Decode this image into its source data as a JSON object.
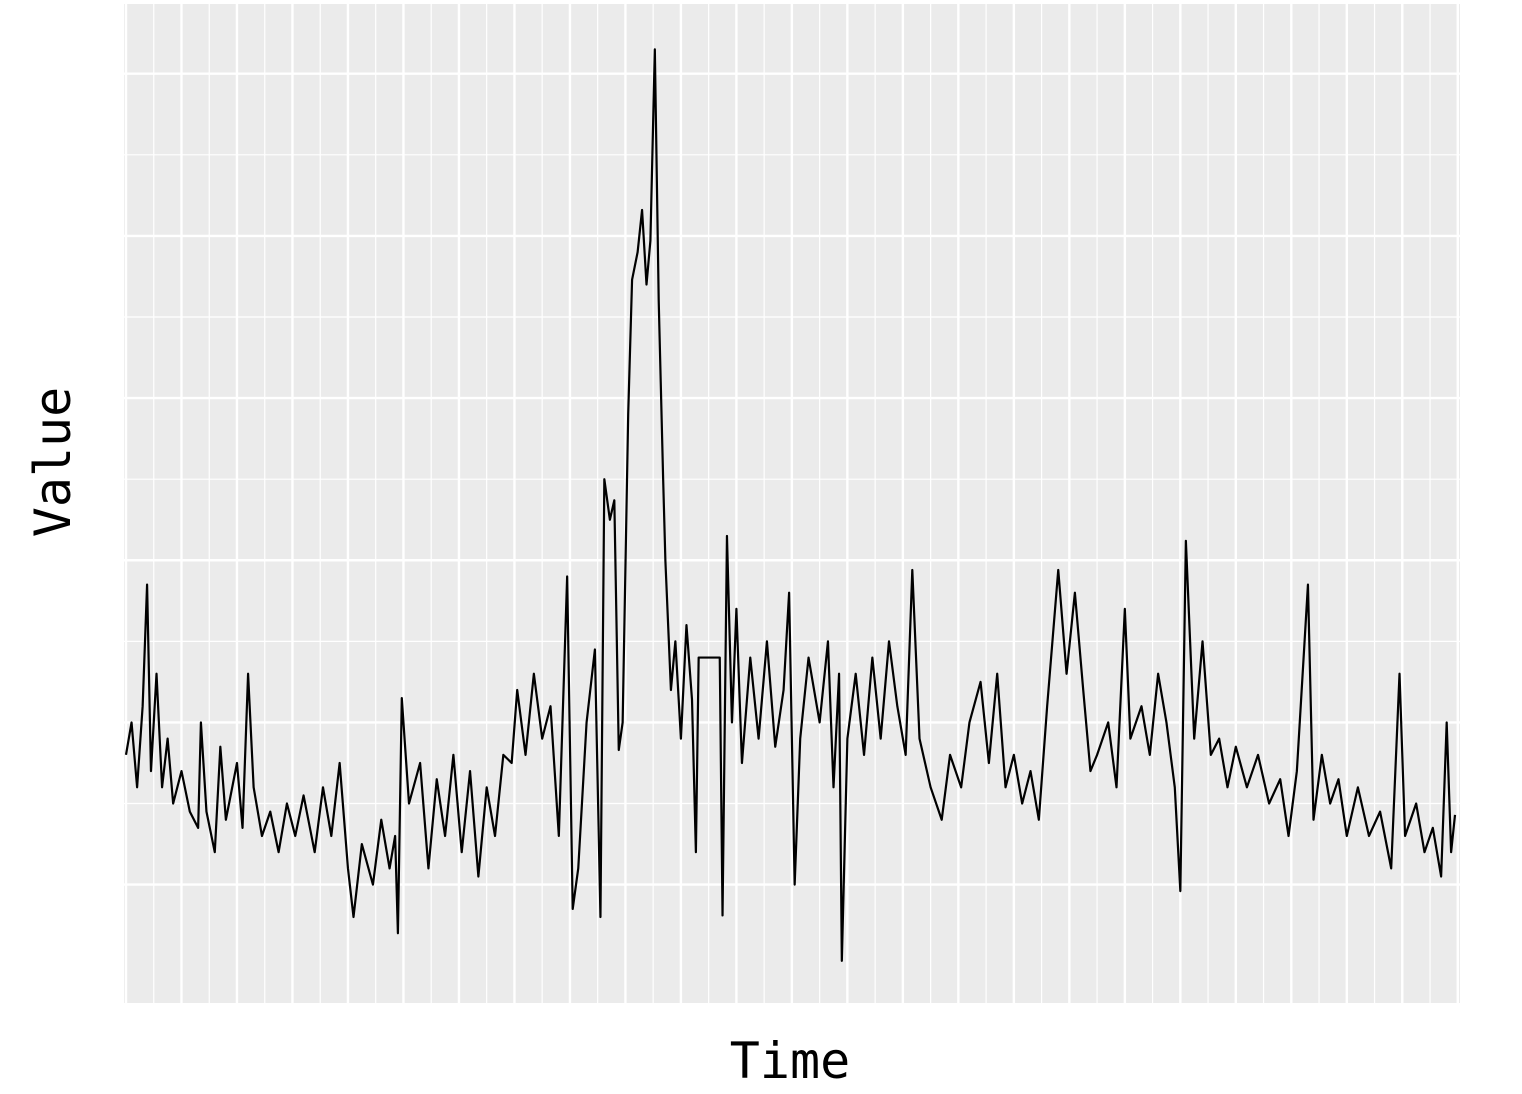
{
  "chart_data": {
    "type": "line",
    "x_label": "Time",
    "y_label": "Value",
    "x": [
      0,
      0.1,
      0.2,
      0.3,
      0.38,
      0.45,
      0.55,
      0.65,
      0.75,
      0.85,
      1.0,
      1.15,
      1.3,
      1.35,
      1.45,
      1.6,
      1.7,
      1.8,
      2.0,
      2.1,
      2.2,
      2.3,
      2.45,
      2.6,
      2.75,
      2.9,
      3.05,
      3.2,
      3.4,
      3.55,
      3.7,
      3.85,
      4.0,
      4.1,
      4.25,
      4.45,
      4.6,
      4.75,
      4.85,
      4.9,
      4.97,
      5.1,
      5.3,
      5.45,
      5.6,
      5.75,
      5.9,
      6.05,
      6.2,
      6.35,
      6.5,
      6.65,
      6.8,
      6.95,
      7.05,
      7.2,
      7.35,
      7.5,
      7.65,
      7.8,
      7.95,
      8.05,
      8.15,
      8.3,
      8.45,
      8.55,
      8.62,
      8.72,
      8.8,
      8.88,
      8.95,
      9.05,
      9.12,
      9.22,
      9.3,
      9.38,
      9.45,
      9.53,
      9.6,
      9.68,
      9.72,
      9.82,
      9.9,
      10.0,
      10.1,
      10.2,
      10.27,
      10.32,
      10.7,
      10.75,
      10.83,
      10.92,
      11.0,
      11.1,
      11.25,
      11.4,
      11.55,
      11.7,
      11.85,
      11.95,
      12.05,
      12.15,
      12.3,
      12.5,
      12.65,
      12.75,
      12.85,
      12.9,
      13.0,
      13.15,
      13.3,
      13.45,
      13.6,
      13.75,
      13.9,
      14.05,
      14.17,
      14.3,
      14.5,
      14.7,
      14.85,
      15.05,
      15.2,
      15.4,
      15.55,
      15.7,
      15.85,
      16.0,
      16.15,
      16.3,
      16.45,
      16.6,
      16.8,
      16.95,
      17.1,
      17.25,
      17.38,
      17.5,
      17.7,
      17.85,
      18.0,
      18.1,
      18.3,
      18.45,
      18.6,
      18.75,
      18.9,
      19.0,
      19.1,
      19.25,
      19.4,
      19.55,
      19.7,
      19.85,
      20.0,
      20.2,
      20.4,
      20.6,
      20.8,
      20.95,
      21.1,
      21.3,
      21.4,
      21.55,
      21.7,
      21.85,
      22.0,
      22.2,
      22.4,
      22.6,
      22.8,
      22.95,
      23.05,
      23.25,
      23.4,
      23.55,
      23.7,
      23.8,
      23.88,
      23.95
    ],
    "series": [
      {
        "color": "#000000",
        "values": [
          1.8,
          2.0,
          1.6,
          2.1,
          2.85,
          1.7,
          2.3,
          1.6,
          1.9,
          1.5,
          1.7,
          1.45,
          1.35,
          2.0,
          1.45,
          1.2,
          1.85,
          1.4,
          1.75,
          1.35,
          2.3,
          1.6,
          1.3,
          1.45,
          1.2,
          1.5,
          1.3,
          1.55,
          1.2,
          1.6,
          1.3,
          1.75,
          1.1,
          0.8,
          1.25,
          1.0,
          1.4,
          1.1,
          1.3,
          0.7,
          2.15,
          1.5,
          1.75,
          1.1,
          1.65,
          1.3,
          1.8,
          1.2,
          1.7,
          1.05,
          1.6,
          1.3,
          1.8,
          1.75,
          2.2,
          1.8,
          2.3,
          1.9,
          2.1,
          1.3,
          2.9,
          0.85,
          1.1,
          2.0,
          2.45,
          0.8,
          3.5,
          3.25,
          3.37,
          1.83,
          2.0,
          3.9,
          4.73,
          4.9,
          5.16,
          4.7,
          4.97,
          6.15,
          4.6,
          3.5,
          3.0,
          2.2,
          2.5,
          1.9,
          2.6,
          2.14,
          1.2,
          2.4,
          2.4,
          0.81,
          3.15,
          2.0,
          2.7,
          1.75,
          2.4,
          1.9,
          2.5,
          1.85,
          2.2,
          2.8,
          1.0,
          1.9,
          2.4,
          2.0,
          2.5,
          1.6,
          2.3,
          0.53,
          1.9,
          2.3,
          1.8,
          2.4,
          1.9,
          2.5,
          2.1,
          1.8,
          2.94,
          1.9,
          1.6,
          1.4,
          1.8,
          1.6,
          2.0,
          2.25,
          1.75,
          2.3,
          1.6,
          1.8,
          1.5,
          1.7,
          1.4,
          2.1,
          2.94,
          2.3,
          2.8,
          2.2,
          1.7,
          1.8,
          2.0,
          1.6,
          2.7,
          1.9,
          2.1,
          1.8,
          2.3,
          2.0,
          1.6,
          0.96,
          3.12,
          1.9,
          2.5,
          1.8,
          1.9,
          1.6,
          1.85,
          1.6,
          1.8,
          1.5,
          1.65,
          1.3,
          1.7,
          2.85,
          1.4,
          1.8,
          1.5,
          1.65,
          1.3,
          1.6,
          1.3,
          1.45,
          1.1,
          2.3,
          1.3,
          1.5,
          1.2,
          1.35,
          1.05,
          2.0,
          1.2,
          1.43
        ]
      }
    ],
    "xlim": [
      -0.036,
      24.04
    ],
    "xticks": [
      0,
      1,
      2,
      3,
      4,
      5,
      6,
      7,
      8,
      9,
      10,
      11,
      12,
      13,
      14,
      15,
      16,
      17,
      18,
      19,
      20,
      21,
      22,
      23,
      24
    ],
    "ylim": [
      0.27,
      6.43
    ],
    "yticks": [
      1,
      2,
      3,
      4,
      5,
      6
    ],
    "grid": true,
    "background": "#ebebeb"
  }
}
